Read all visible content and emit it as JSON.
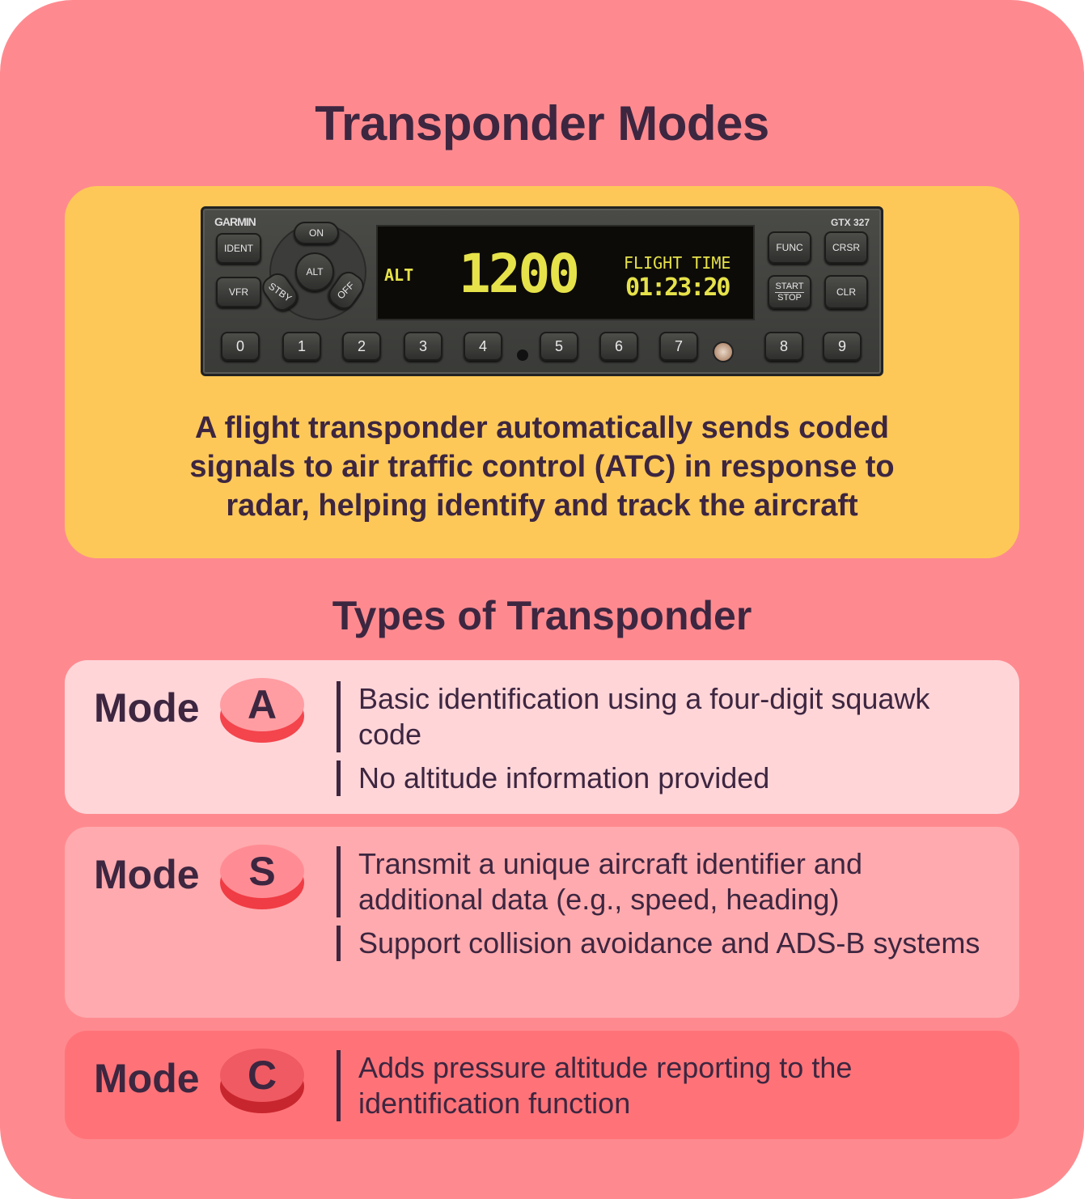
{
  "title": "Transponder Modes",
  "device": {
    "brand": "GARMIN",
    "model": "GTX 327",
    "display": {
      "mode": "ALT",
      "squawk": "1200",
      "label": "FLIGHT TIME",
      "time": "01:23:20"
    },
    "left_buttons": {
      "ident": "IDENT",
      "vfr": "VFR",
      "on": "ON",
      "alt": "ALT",
      "stby": "STBY",
      "off": "OFF"
    },
    "right_buttons": {
      "func": "FUNC",
      "crsr": "CRSR",
      "start": "START",
      "stop": "STOP",
      "clr": "CLR"
    },
    "digits": [
      "0",
      "1",
      "2",
      "3",
      "4",
      "5",
      "6",
      "7",
      "8",
      "9"
    ]
  },
  "description": "A flight transponder automatically sends coded signals to air traffic control (ATC) in response to radar, helping identify and track the aircraft",
  "types_title": "Types of Transponder",
  "modes": [
    {
      "word": "Mode",
      "letter": "A",
      "bullets": [
        "Basic identification using a four-digit squawk code",
        "No altitude information provided"
      ],
      "card_color": "#ffd5d8"
    },
    {
      "word": "Mode",
      "letter": "S",
      "bullets": [
        "Transmit a unique aircraft identifier and additional data (e.g., speed, heading)",
        "Support collision avoidance and ADS-B systems"
      ],
      "card_color": "#ffaaae"
    },
    {
      "word": "Mode",
      "letter": "C",
      "bullets": [
        "Adds pressure altitude reporting to the identification function"
      ],
      "card_color": "#ff7378"
    }
  ],
  "colors": {
    "background": "#fe8a8f",
    "hero": "#fdc858",
    "text": "#3d2640",
    "display": "#e6e24a"
  }
}
